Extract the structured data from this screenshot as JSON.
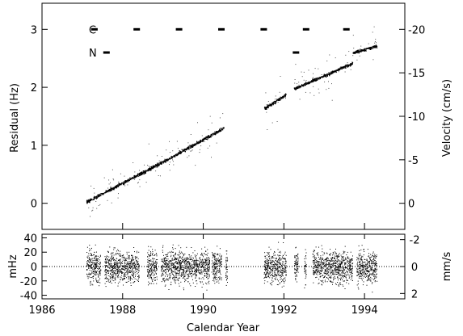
{
  "chart_data": [
    {
      "type": "scatter",
      "panel": "upper",
      "title": "",
      "xlabel": "",
      "ylabel": "Residual (Hz)",
      "y2label": "Velocity (cm/s)",
      "xlim": [
        1986,
        1995
      ],
      "ylim": [
        -0.45,
        3.45
      ],
      "y2lim": [
        3.0,
        -23.0
      ],
      "yticks": [
        0,
        1,
        2,
        3
      ],
      "y2ticks": [
        0,
        -5,
        -10,
        -15,
        -20
      ],
      "grid": false,
      "legend": "none",
      "series": [
        {
          "segments": [
            {
              "x": [
                1987.1,
                1989.0
              ],
              "y": [
                0.03,
                0.72
              ]
            },
            {
              "x": [
                1989.0,
                1990.5
              ],
              "y": [
                0.72,
                1.3
              ]
            },
            {
              "x": [
                1991.5,
                1992.05
              ],
              "y": [
                1.63,
                1.88
              ]
            },
            {
              "x": [
                1992.25,
                1993.7
              ],
              "y": [
                1.98,
                2.42
              ]
            },
            {
              "x": [
                1993.7,
                1994.3
              ],
              "y": [
                2.6,
                2.72
              ]
            }
          ]
        }
      ],
      "markers": [
        {
          "label": "C",
          "y": 3.0,
          "x": [
            1987.3,
            1988.35,
            1989.4,
            1990.45,
            1991.5,
            1992.55,
            1993.55
          ]
        },
        {
          "label": "N",
          "y": 2.6,
          "x": [
            1987.6,
            1992.3
          ]
        }
      ]
    },
    {
      "type": "scatter",
      "panel": "lower",
      "title": "",
      "xlabel": "Calendar Year",
      "ylabel": "mHz",
      "y2label": "mm/s",
      "xlim": [
        1986,
        1995
      ],
      "ylim": [
        -45,
        45
      ],
      "y2lim": [
        2.4,
        -2.4
      ],
      "xticks": [
        1986,
        1988,
        1990,
        1992,
        1994
      ],
      "yticks": [
        -40,
        -20,
        0,
        20,
        40
      ],
      "y2ticks": [
        2,
        0,
        -2
      ],
      "reference_line": 0,
      "grid": false,
      "legend": "none",
      "series": [
        {
          "x_ranges": [
            [
              1987.1,
              1987.45
            ],
            [
              1987.55,
              1988.4
            ],
            [
              1988.6,
              1988.85
            ],
            [
              1988.95,
              1990.15
            ],
            [
              1990.2,
              1990.45
            ],
            [
              1990.55,
              1990.6
            ],
            [
              1991.5,
              1992.05
            ],
            [
              1992.25,
              1992.35
            ],
            [
              1992.5,
              1992.55
            ],
            [
              1992.7,
              1993.7
            ],
            [
              1993.8,
              1994.3
            ]
          ],
          "spread": 20
        }
      ]
    }
  ]
}
